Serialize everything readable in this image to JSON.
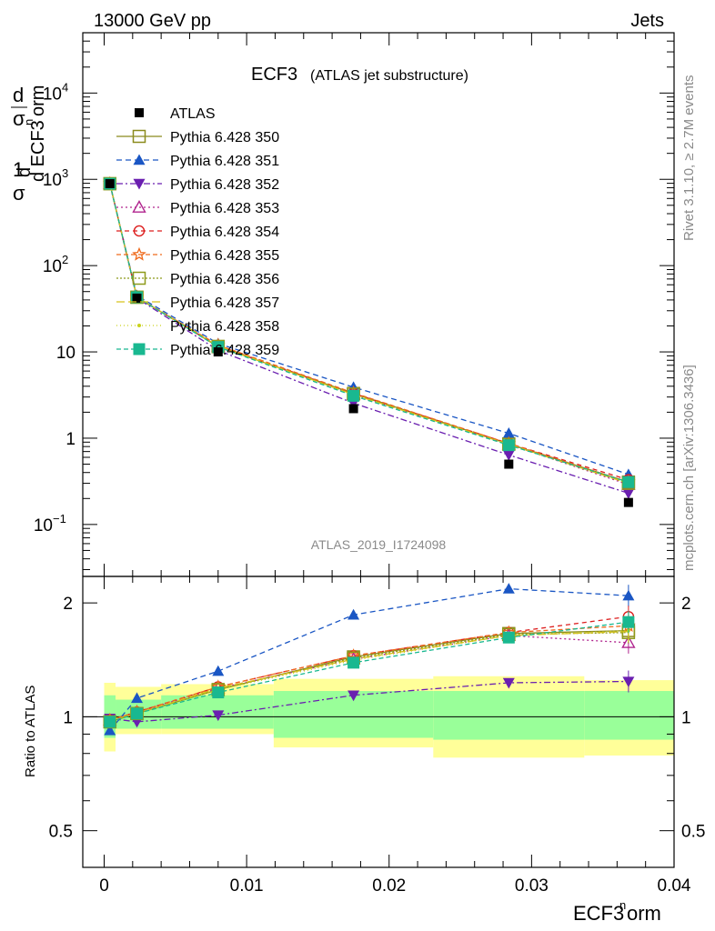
{
  "header": {
    "left": "13000 GeV pp",
    "right": "Jets"
  },
  "title": {
    "main": "ECF3",
    "sub": "(ATLAS jet substructure)"
  },
  "side_labels": {
    "rivet": "Rivet 3.1.10, ≥ 2.7M events",
    "mcplots": "mcplots.cern.ch [arXiv:1306.3436]"
  },
  "watermark": "ATLAS_2019_I1724098",
  "axes": {
    "ylabel_main": "1/σ dσ/d ECF3norm",
    "ylabel_ratio": "Ratio to ATLAS",
    "xlabel": "ECF3norm",
    "main_yticks": [
      "10−1",
      "1",
      "10",
      "102",
      "103",
      "104"
    ],
    "ratio_yticks": [
      "0.5",
      "1",
      "2"
    ],
    "xticks": [
      "0",
      "0.01",
      "0.02",
      "0.03",
      "0.04"
    ]
  },
  "colors": {
    "data": "#000000",
    "p350": "#8b8b1c",
    "p351": "#1a56c4",
    "p352": "#6a1fb0",
    "p353": "#b0248e",
    "p354": "#dd1f1f",
    "p355": "#ef6a1c",
    "p356": "#8e9a1a",
    "p357": "#d7c21a",
    "p358": "#c9d21a",
    "p359": "#19b890",
    "band_outer": "#ffff99",
    "band_inner": "#99ff99"
  },
  "chart_data": {
    "type": "line",
    "xlim": [
      -0.0015,
      0.04
    ],
    "ylim_main": [
      0.025,
      50000
    ],
    "ylim_ratio": [
      0.4,
      2.35
    ],
    "log_y_main": true,
    "log_y_ratio": true,
    "legend_position": "top-left",
    "x": [
      0.0004,
      0.0023,
      0.008,
      0.0175,
      0.0284,
      0.0368
    ],
    "bins": [
      [
        0.0,
        0.0008
      ],
      [
        0.0008,
        0.004
      ],
      [
        0.004,
        0.0119
      ],
      [
        0.0119,
        0.0231
      ],
      [
        0.0231,
        0.0337
      ],
      [
        0.0337,
        0.04
      ]
    ],
    "data": {
      "name": "ATLAS",
      "values": [
        890,
        42,
        10,
        2.2,
        0.5,
        0.18
      ],
      "band_inner": [
        [
          0.88,
          1.14
        ],
        [
          0.93,
          1.11
        ],
        [
          0.93,
          1.14
        ],
        [
          0.88,
          1.17
        ],
        [
          0.87,
          1.17
        ],
        [
          0.87,
          1.17
        ]
      ],
      "band_outer": [
        [
          0.81,
          1.23
        ],
        [
          0.9,
          1.2
        ],
        [
          0.9,
          1.22
        ],
        [
          0.83,
          1.26
        ],
        [
          0.78,
          1.28
        ],
        [
          0.79,
          1.25
        ]
      ]
    },
    "series": [
      {
        "name": "Pythia 6.428 350",
        "key": "p350",
        "marker": "square-open",
        "dash": "",
        "values": [
          890,
          43,
          11.5,
          3.3,
          0.86,
          0.31
        ],
        "ratio": [
          0.97,
          1.02,
          1.18,
          1.44,
          1.66,
          1.69
        ]
      },
      {
        "name": "Pythia 6.428 351",
        "key": "p351",
        "marker": "triangle-up",
        "dash": "6,4",
        "values": [
          890,
          45,
          12.5,
          3.9,
          1.14,
          0.38
        ],
        "ratio": [
          0.92,
          1.12,
          1.32,
          1.86,
          2.18,
          2.09
        ]
      },
      {
        "name": "Pythia 6.428 352",
        "key": "p352",
        "marker": "triangle-down",
        "dash": "7,3,2,3",
        "values": [
          890,
          42,
          10.4,
          2.55,
          0.64,
          0.23
        ],
        "ratio": [
          0.99,
          0.97,
          1.01,
          1.14,
          1.23,
          1.24
        ]
      },
      {
        "name": "Pythia 6.428 353",
        "key": "p353",
        "marker": "triangle-up-open",
        "dash": "2,3",
        "values": [
          890,
          43,
          11.7,
          3.2,
          0.85,
          0.29
        ],
        "ratio": [
          0.98,
          1.03,
          1.19,
          1.42,
          1.64,
          1.57
        ]
      },
      {
        "name": "Pythia 6.428 354",
        "key": "p354",
        "marker": "circle-open",
        "dash": "5,4",
        "values": [
          890,
          43,
          11.8,
          3.3,
          0.87,
          0.33
        ],
        "ratio": [
          0.98,
          1.03,
          1.2,
          1.45,
          1.67,
          1.84
        ]
      },
      {
        "name": "Pythia 6.428 355",
        "key": "p355",
        "marker": "star-open",
        "dash": "5,3",
        "values": [
          890,
          43,
          12,
          3.35,
          0.87,
          0.31
        ],
        "ratio": [
          0.98,
          1.03,
          1.2,
          1.45,
          1.67,
          1.74
        ]
      },
      {
        "name": "Pythia 6.428 356",
        "key": "p356",
        "marker": "square-open",
        "dash": "2,2",
        "values": [
          890,
          43,
          11.6,
          3.25,
          0.85,
          0.3
        ],
        "ratio": [
          0.97,
          1.02,
          1.18,
          1.43,
          1.65,
          1.67
        ]
      },
      {
        "name": "Pythia 6.428 357",
        "key": "p357",
        "marker": "none",
        "dash": "9,4",
        "values": [
          890,
          43,
          11.7,
          3.2,
          0.85,
          0.3
        ],
        "ratio": [
          0.98,
          1.02,
          1.19,
          1.42,
          1.64,
          1.68
        ]
      },
      {
        "name": "Pythia 6.428 358",
        "key": "p358",
        "marker": "dot",
        "dash": "1,3",
        "values": [
          890,
          43,
          11.6,
          3.2,
          0.84,
          0.3
        ],
        "ratio": [
          0.98,
          1.02,
          1.18,
          1.41,
          1.64,
          1.69
        ]
      },
      {
        "name": "Pythia 6.428 359",
        "key": "p359",
        "marker": "square-filled",
        "dash": "5,3",
        "values": [
          890,
          43,
          11.4,
          3.1,
          0.83,
          0.31
        ],
        "ratio": [
          0.97,
          1.02,
          1.16,
          1.39,
          1.62,
          1.78
        ]
      }
    ]
  }
}
